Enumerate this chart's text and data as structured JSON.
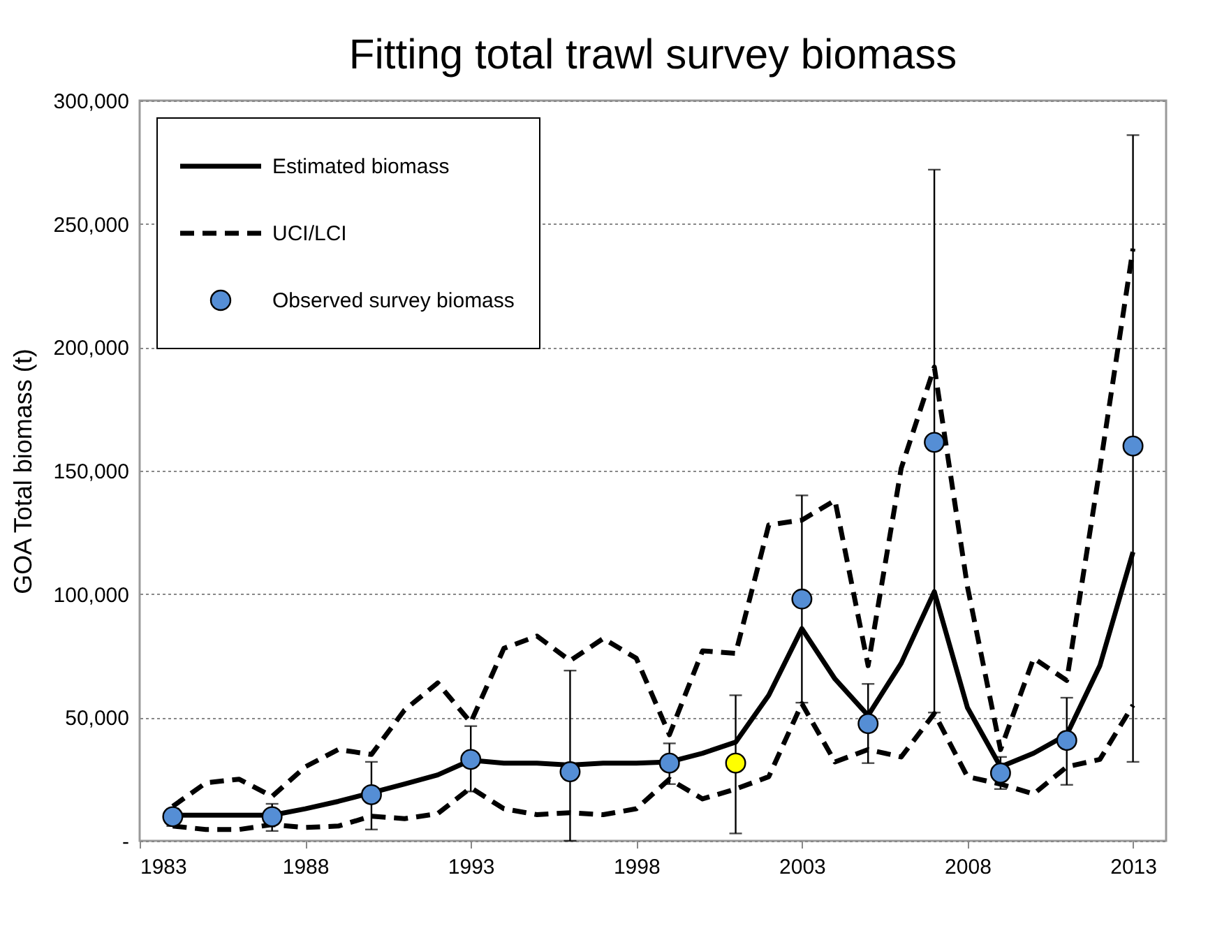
{
  "chart_data": {
    "type": "line",
    "title": "Fitting total trawl survey biomass",
    "ylabel": "GOA Total biomass (t)",
    "xlim": [
      1983,
      2014
    ],
    "xticks": [
      1983,
      1988,
      1993,
      1998,
      2003,
      2008,
      2013
    ],
    "ylim": [
      0,
      300000
    ],
    "yticks": [
      {
        "value": 0,
        "label": "-"
      },
      {
        "value": 50000,
        "label": "50,000"
      },
      {
        "value": 100000,
        "label": "100,000"
      },
      {
        "value": 150000,
        "label": "150,000"
      },
      {
        "value": 200000,
        "label": "200,000"
      },
      {
        "value": 250000,
        "label": "250,000"
      },
      {
        "value": 300000,
        "label": "300,000"
      }
    ],
    "grid": "y",
    "legend": "top left",
    "series": [
      {
        "name": "Estimated biomass",
        "line_style": "solid",
        "color": "#000000",
        "x": [
          1984,
          1985,
          1986,
          1987,
          1988,
          1989,
          1990,
          1991,
          1992,
          1993,
          1994,
          1995,
          1996,
          1997,
          1998,
          1999,
          2000,
          2001,
          2002,
          2003,
          2004,
          2005,
          2006,
          2007,
          2008,
          2009,
          2010,
          2011,
          2012,
          2013
        ],
        "values": [
          10400,
          10400,
          10400,
          10400,
          13000,
          16000,
          19500,
          23000,
          26700,
          32700,
          31500,
          31500,
          30700,
          31500,
          31500,
          32000,
          35500,
          40000,
          59000,
          86000,
          65600,
          50800,
          72000,
          101000,
          54000,
          30000,
          35500,
          43000,
          71000,
          117000
        ]
      },
      {
        "name": "UCI/LCI",
        "line_style": "dashed",
        "color": "#000000",
        "x": [
          1984,
          1985,
          1986,
          1987,
          1988,
          1989,
          1990,
          1991,
          1992,
          1993,
          1994,
          1995,
          1996,
          1997,
          1998,
          1999,
          2000,
          2001,
          2002,
          2003,
          2004,
          2005,
          2006,
          2007,
          2008,
          2009,
          2010,
          2011,
          2012,
          2013
        ],
        "values": [
          14000,
          23500,
          25000,
          18000,
          30000,
          37000,
          35000,
          53000,
          64000,
          48000,
          78000,
          83000,
          73000,
          82000,
          74000,
          43000,
          77000,
          76000,
          128000,
          130000,
          138000,
          71000,
          151000,
          192000,
          103000,
          37000,
          74000,
          65000,
          151000,
          240000
        ]
      },
      {
        "line_style": "dashed",
        "color": "#000000",
        "x": [
          1984,
          1985,
          1986,
          1987,
          1988,
          1989,
          1990,
          1991,
          1992,
          1993,
          1994,
          1995,
          1996,
          1997,
          1998,
          1999,
          2000,
          2001,
          2002,
          2003,
          2004,
          2005,
          2006,
          2007,
          2008,
          2009,
          2010,
          2011,
          2012,
          2013
        ],
        "values": [
          6000,
          4600,
          4600,
          6600,
          5400,
          6000,
          10000,
          9000,
          11000,
          21500,
          13000,
          10600,
          11400,
          10600,
          13000,
          25000,
          17000,
          21000,
          26000,
          55600,
          32000,
          37000,
          34000,
          51600,
          26000,
          23000,
          19000,
          30000,
          33000,
          55000
        ]
      },
      {
        "name": "Observed survey biomass",
        "type": "scatter",
        "marker": "circle",
        "color": "#558ed5",
        "colors": [
          "#558ed5",
          "#558ed5",
          "#558ed5",
          "#558ed5",
          "#558ed5",
          "#558ed5",
          "#ffff00",
          "#558ed5",
          "#558ed5",
          "#558ed5",
          "#558ed5",
          "#558ed5",
          "#558ed5"
        ],
        "x": [
          1984,
          1987,
          1990,
          1993,
          1996,
          1999,
          2001,
          2003,
          2005,
          2007,
          2009,
          2011,
          2013
        ],
        "values": [
          9800,
          9800,
          18700,
          33000,
          28000,
          31500,
          31500,
          98000,
          47500,
          161500,
          27500,
          40700,
          160000
        ],
        "errors": [
          [
            6000,
            13000
          ],
          [
            4000,
            15000
          ],
          [
            4600,
            32000
          ],
          [
            20000,
            46500
          ],
          [
            0,
            69000
          ],
          [
            23000,
            39500
          ],
          [
            3000,
            59000
          ],
          [
            56000,
            140000
          ],
          [
            31500,
            63600
          ],
          [
            52000,
            272000
          ],
          [
            21000,
            34000
          ],
          [
            22700,
            58000
          ],
          [
            32000,
            286000
          ]
        ]
      }
    ]
  }
}
